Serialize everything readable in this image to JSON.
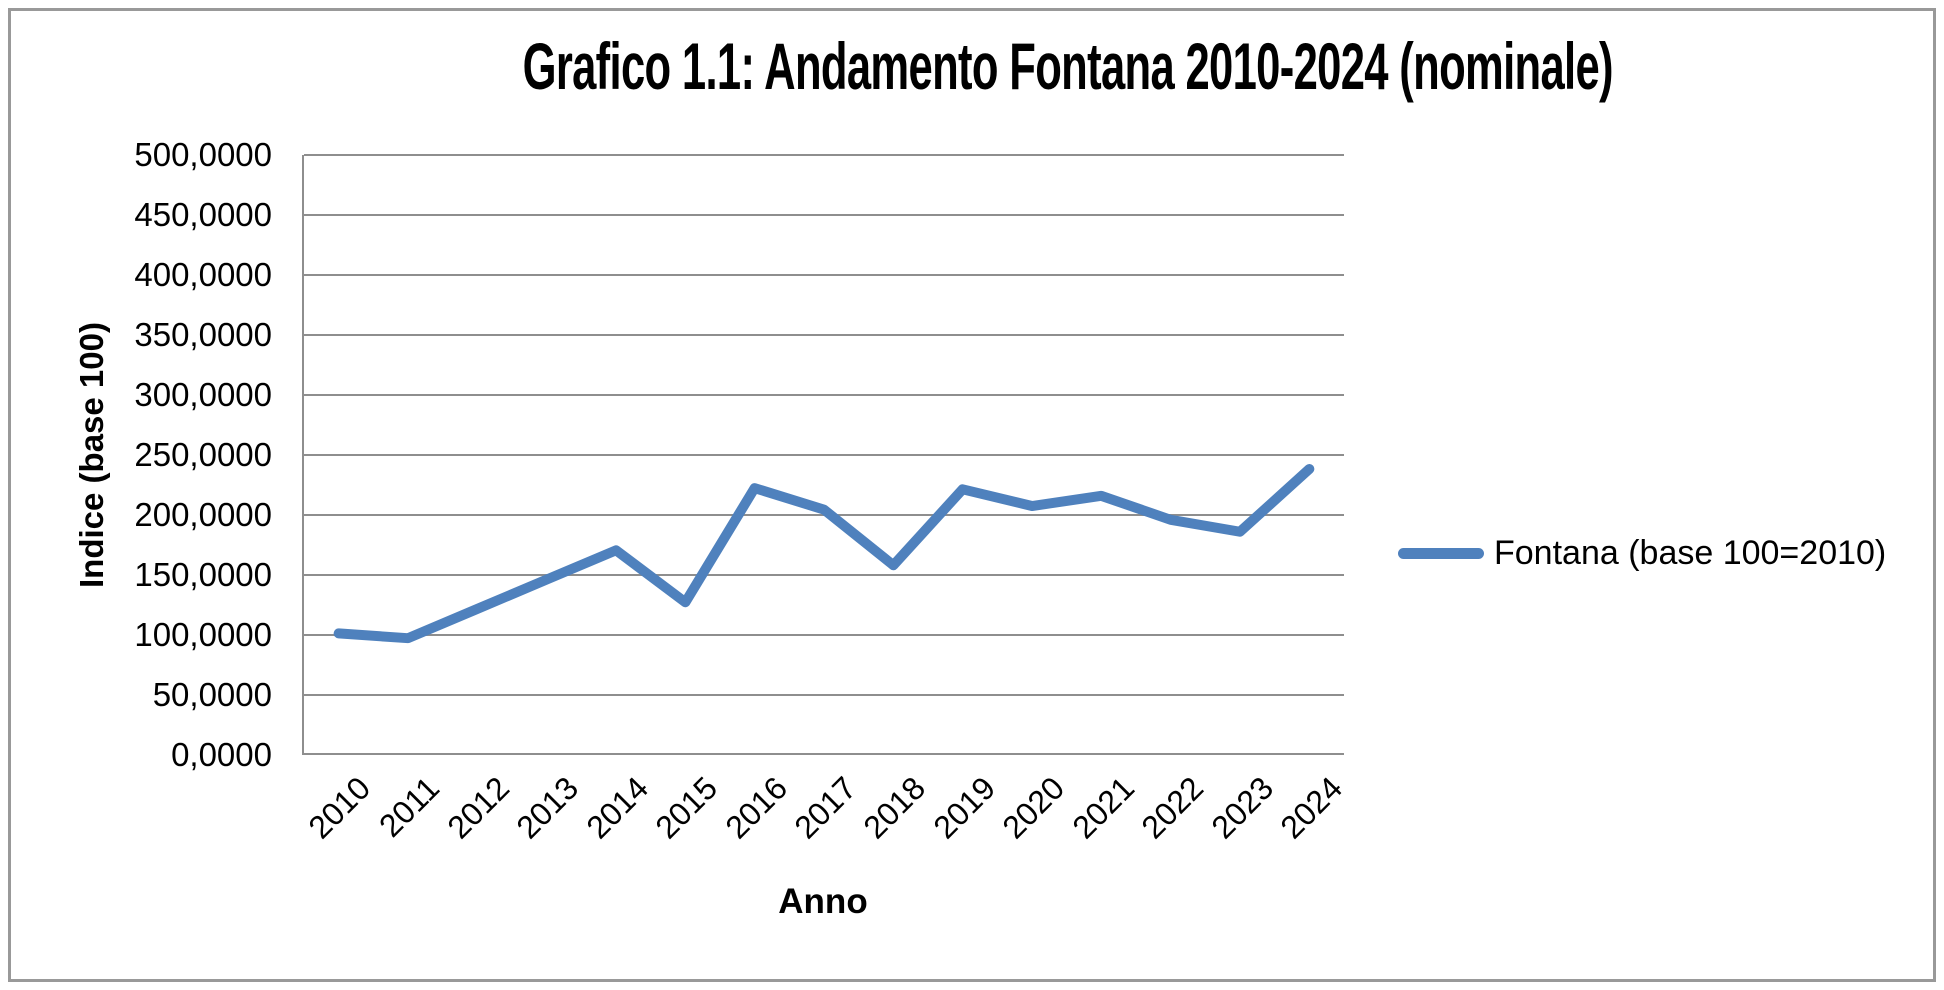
{
  "window": {
    "background": "#FFFFFF",
    "frame_color": "#999999"
  },
  "chart_data": {
    "type": "line",
    "title": "Grafico 1.1: Andamento Fontana 2010-2024 (nominale)",
    "xlabel": "Anno",
    "ylabel": "Indice (base 100)",
    "categories": [
      "2010",
      "2011",
      "2012",
      "2013",
      "2014",
      "2015",
      "2016",
      "2017",
      "2018",
      "2019",
      "2020",
      "2021",
      "2022",
      "2023",
      "2024"
    ],
    "series": [
      {
        "name": "Fontana (base 100=2010)",
        "color": "#4F81BD",
        "values": [
          100.0,
          96.0,
          120.5,
          145.0,
          169.5,
          126.0,
          221.5,
          203.5,
          157.0,
          220.5,
          206.5,
          215.0,
          195.0,
          185.0,
          237.5
        ]
      }
    ],
    "ylim": [
      0,
      500
    ],
    "ytick_step": 50,
    "ytick_labels_top_to_bottom": [
      "500,0000",
      "450,0000",
      "400,0000",
      "350,0000",
      "300,0000",
      "250,0000",
      "200,0000",
      "150,0000",
      "100,0000",
      "50,0000",
      "0,0000"
    ],
    "grid": true,
    "legend_position": "right",
    "gridline_color": "#8E8E8E",
    "axis_color": "#8E8E8E",
    "text_color": "#000000"
  }
}
